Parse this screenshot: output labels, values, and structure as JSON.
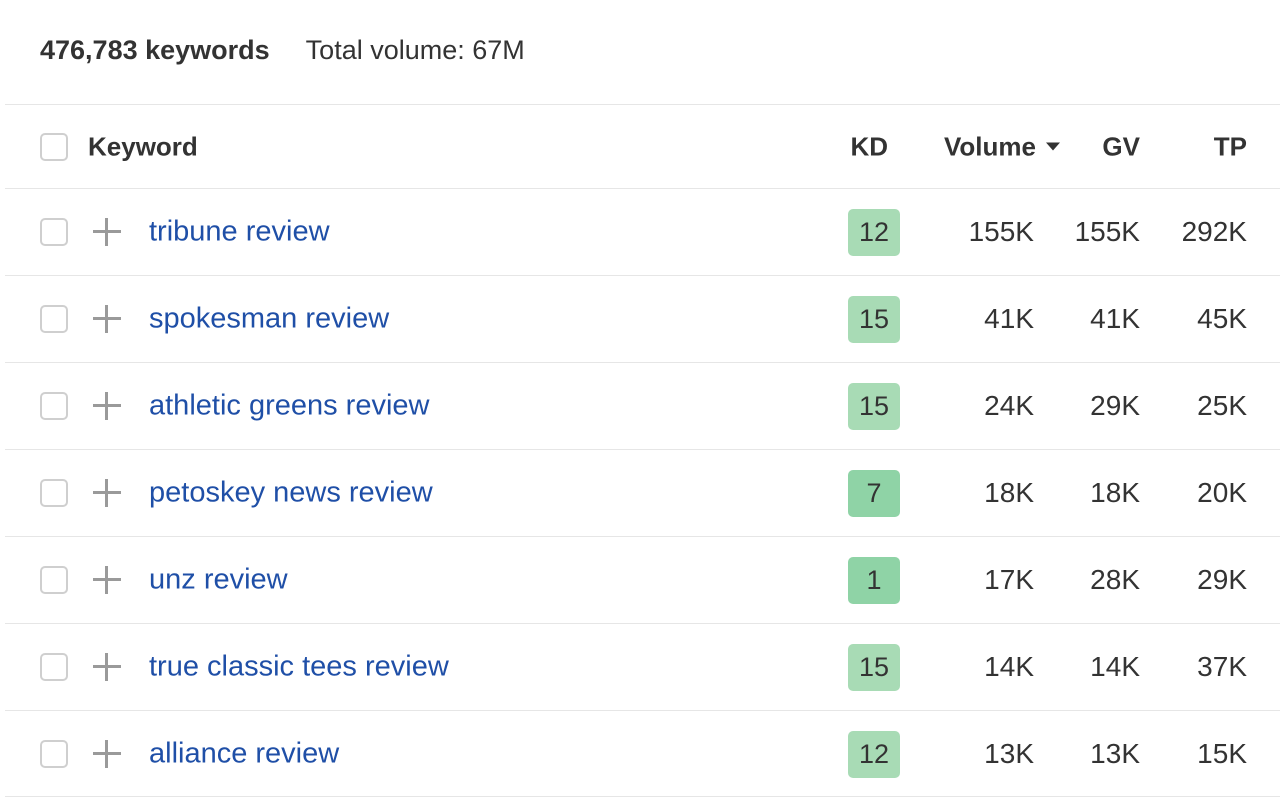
{
  "summary": {
    "keyword_count": "476,783 keywords",
    "total_volume": "Total volume: 67M"
  },
  "columns": {
    "keyword": "Keyword",
    "kd": "KD",
    "volume": "Volume",
    "gv": "GV",
    "tp": "TP"
  },
  "sort": {
    "column": "Volume",
    "direction": "descending",
    "icon": "caret-down-icon"
  },
  "icons": {
    "add_to_list": "plus-icon",
    "select": "checkbox-icon"
  },
  "colors": {
    "link": "#1f4fa7",
    "kd_easy": "#9fd8b0",
    "kd_very_easy": "#86cfa0"
  },
  "rows": [
    {
      "keyword": "tribune review",
      "kd": "12",
      "kd_color": "#a8dbb5",
      "volume": "155K",
      "gv": "155K",
      "tp": "292K"
    },
    {
      "keyword": "spokesman review",
      "kd": "15",
      "kd_color": "#a8dbb5",
      "volume": "41K",
      "gv": "41K",
      "tp": "45K"
    },
    {
      "keyword": "athletic greens review",
      "kd": "15",
      "kd_color": "#a8dbb5",
      "volume": "24K",
      "gv": "29K",
      "tp": "25K"
    },
    {
      "keyword": "petoskey news review",
      "kd": "7",
      "kd_color": "#8fd3a6",
      "volume": "18K",
      "gv": "18K",
      "tp": "20K"
    },
    {
      "keyword": "unz review",
      "kd": "1",
      "kd_color": "#8fd3a6",
      "volume": "17K",
      "gv": "28K",
      "tp": "29K"
    },
    {
      "keyword": "true classic tees review",
      "kd": "15",
      "kd_color": "#a8dbb5",
      "volume": "14K",
      "gv": "14K",
      "tp": "37K"
    },
    {
      "keyword": "alliance review",
      "kd": "12",
      "kd_color": "#a8dbb5",
      "volume": "13K",
      "gv": "13K",
      "tp": "15K"
    }
  ]
}
